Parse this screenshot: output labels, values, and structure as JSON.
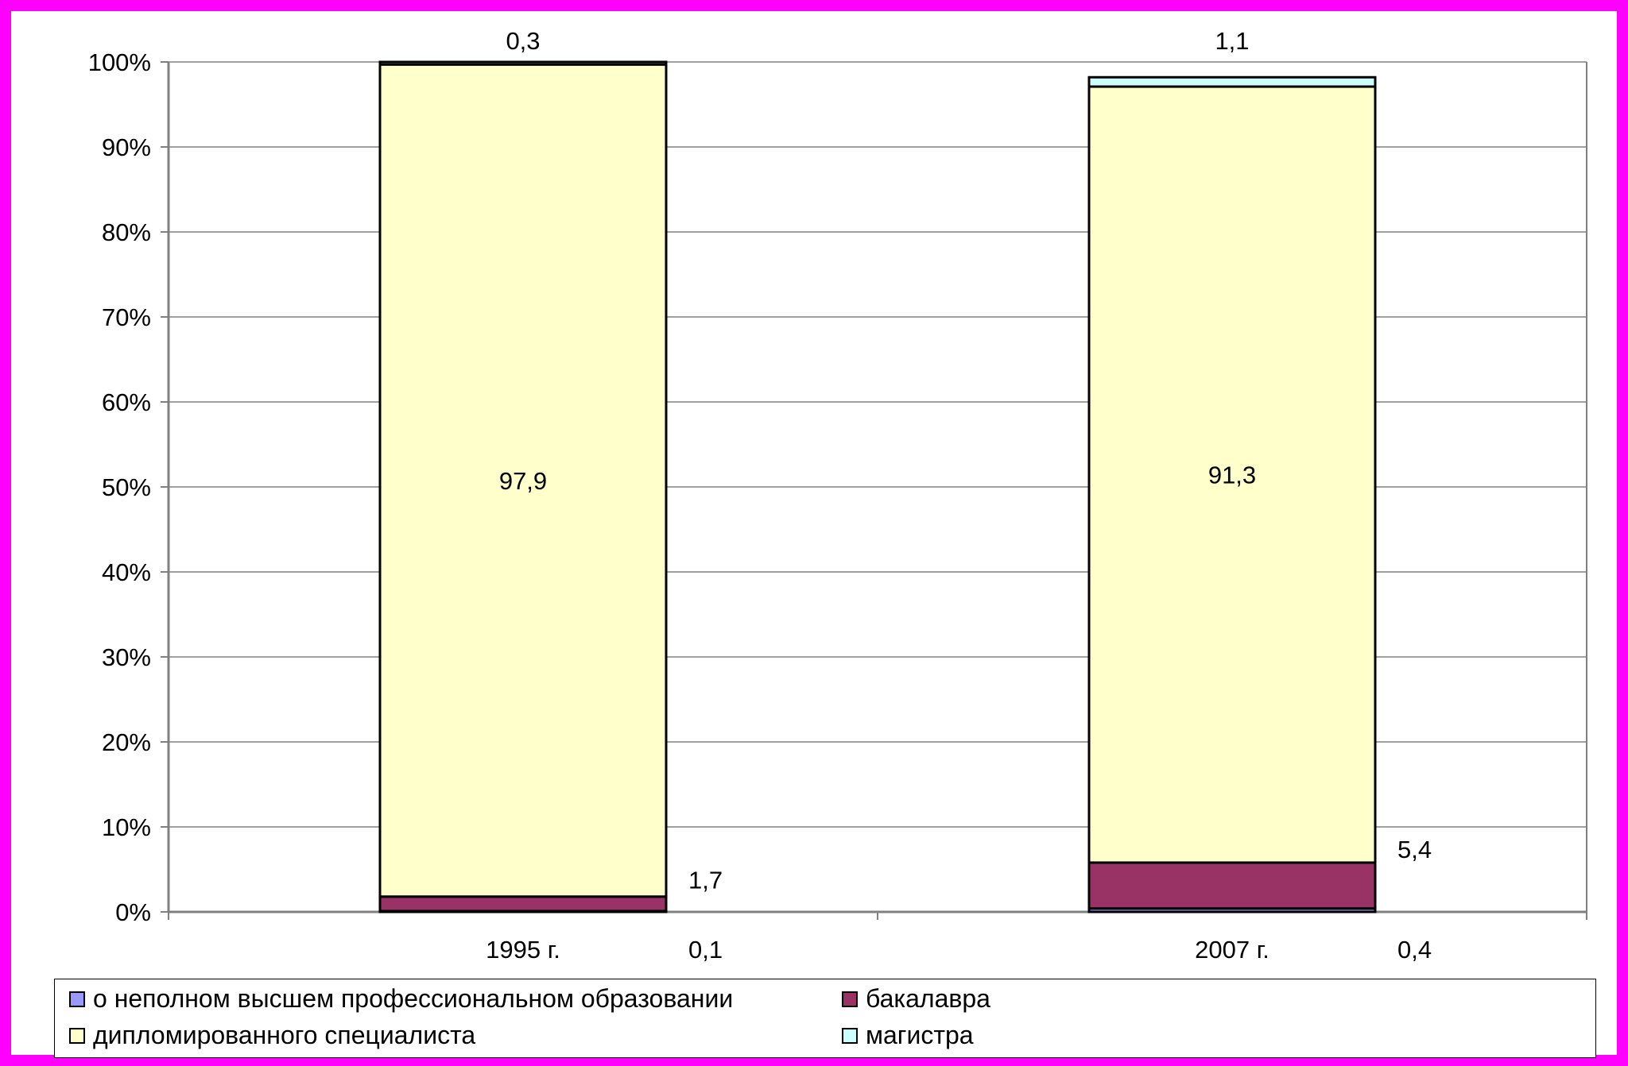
{
  "colors": {
    "frame_border": "#ff00ff",
    "gridline": "#808080",
    "axis": "#808080",
    "bar_outline": "#000000"
  },
  "legend": {
    "items": [
      {
        "label": "о неполном высшем профессиональном образовании",
        "color": "#9999ff"
      },
      {
        "label": "бакалавра",
        "color": "#993366"
      },
      {
        "label": "дипломированного специалиста",
        "color": "#ffffcc"
      },
      {
        "label": "магистра",
        "color": "#ccffff"
      }
    ]
  },
  "chart_data": {
    "type": "bar",
    "stacked": true,
    "percent_stacked": true,
    "categories": [
      "1995 г.",
      "2007 г."
    ],
    "series": [
      {
        "name": "о неполном высшем профессиональном образовании",
        "values": [
          0.1,
          0.4
        ],
        "labels": [
          "0,1",
          "0,4"
        ],
        "color": "#9999ff"
      },
      {
        "name": "бакалавра",
        "values": [
          1.7,
          5.4
        ],
        "labels": [
          "1,7",
          "5,4"
        ],
        "color": "#993366"
      },
      {
        "name": "дипломированного специалиста",
        "values": [
          97.9,
          91.3
        ],
        "labels": [
          "97,9",
          "91,3"
        ],
        "color": "#ffffcc"
      },
      {
        "name": "магистра",
        "values": [
          0.3,
          1.1
        ],
        "labels": [
          "0,3",
          "1,1"
        ],
        "color": "#ccffff"
      }
    ],
    "ylim": [
      0,
      100
    ],
    "y_ticks": [
      "0%",
      "10%",
      "20%",
      "30%",
      "40%",
      "50%",
      "60%",
      "70%",
      "80%",
      "90%",
      "100%"
    ],
    "grid": true,
    "legend_position": "bottom"
  }
}
